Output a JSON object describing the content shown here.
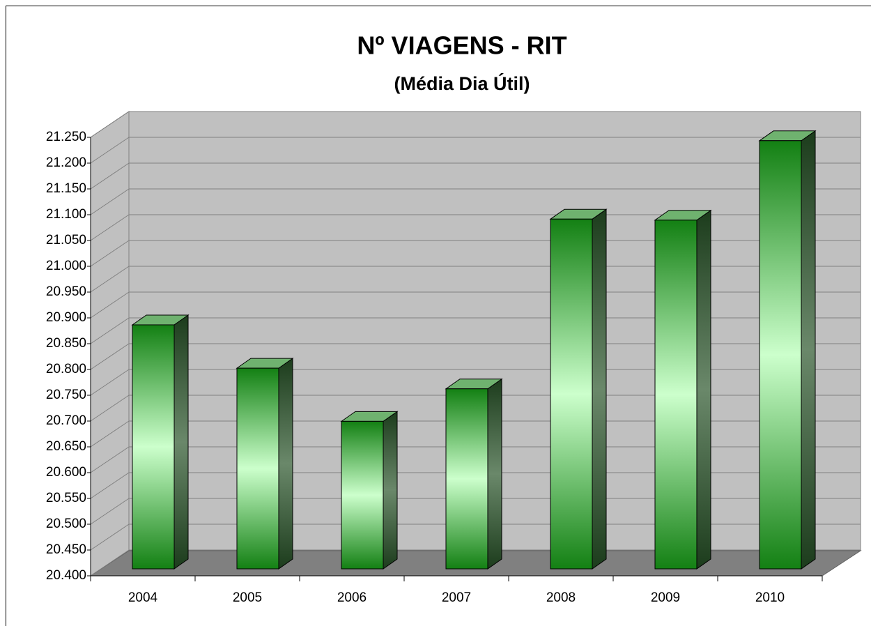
{
  "chart_data": {
    "type": "bar3d",
    "title": "Nº VIAGENS  -  RIT",
    "subtitle": "(Média Dia Útil)",
    "categories": [
      "2004",
      "2005",
      "2006",
      "2007",
      "2008",
      "2009",
      "2010"
    ],
    "values": [
      20873,
      20789,
      20686,
      20749,
      21078,
      21076,
      21230
    ],
    "color": "#1a8a1a",
    "ylim": [
      20400,
      21250
    ],
    "yticks": [
      {
        "value": 20400,
        "label": "20.400"
      },
      {
        "value": 20450,
        "label": "20.450"
      },
      {
        "value": 20500,
        "label": "20.500"
      },
      {
        "value": 20550,
        "label": "20.550"
      },
      {
        "value": 20600,
        "label": "20.600"
      },
      {
        "value": 20650,
        "label": "20.650"
      },
      {
        "value": 20700,
        "label": "20.700"
      },
      {
        "value": 20750,
        "label": "20.750"
      },
      {
        "value": 20800,
        "label": "20.800"
      },
      {
        "value": 20850,
        "label": "20.850"
      },
      {
        "value": 20900,
        "label": "20.900"
      },
      {
        "value": 20950,
        "label": "20.950"
      },
      {
        "value": 21000,
        "label": "21.000"
      },
      {
        "value": 21050,
        "label": "21.050"
      },
      {
        "value": 21100,
        "label": "21.100"
      },
      {
        "value": 21150,
        "label": "21.150"
      },
      {
        "value": 21200,
        "label": "21.200"
      },
      {
        "value": 21250,
        "label": "21.250"
      }
    ],
    "grid": true
  }
}
